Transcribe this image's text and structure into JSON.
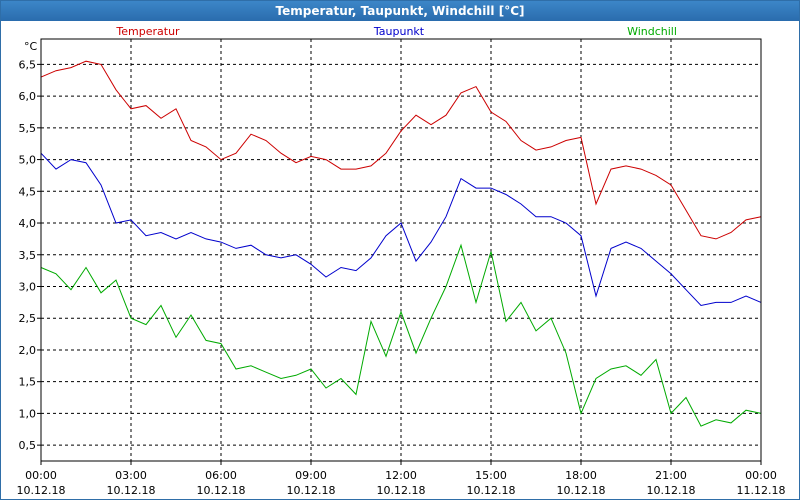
{
  "window": {
    "title": "Temperatur, Taupunkt, Windchill [°C]"
  },
  "chart_data": {
    "type": "line",
    "title": "Temperatur, Taupunkt, Windchill [°C]",
    "ylabel": "°C",
    "xlabel": "",
    "ylim": [
      0.25,
      6.9
    ],
    "xlim_hours": [
      0,
      24
    ],
    "grid": true,
    "yticks": [
      "0,5",
      "1,0",
      "1,5",
      "2,0",
      "2,5",
      "3,0",
      "3,5",
      "4,0",
      "4,5",
      "5,0",
      "5,5",
      "6,0",
      "6,5"
    ],
    "ytick_values": [
      0.5,
      1.0,
      1.5,
      2.0,
      2.5,
      3.0,
      3.5,
      4.0,
      4.5,
      5.0,
      5.5,
      6.0,
      6.5
    ],
    "xticks": [
      {
        "h": 0,
        "time": "00:00",
        "date": "10.12.18"
      },
      {
        "h": 3,
        "time": "03:00",
        "date": "10.12.18"
      },
      {
        "h": 6,
        "time": "06:00",
        "date": "10.12.18"
      },
      {
        "h": 9,
        "time": "09:00",
        "date": "10.12.18"
      },
      {
        "h": 12,
        "time": "12:00",
        "date": "10.12.18"
      },
      {
        "h": 15,
        "time": "15:00",
        "date": "10.12.18"
      },
      {
        "h": 18,
        "time": "18:00",
        "date": "10.12.18"
      },
      {
        "h": 21,
        "time": "21:00",
        "date": "10.12.18"
      },
      {
        "h": 24,
        "time": "00:00",
        "date": "11.12.18"
      }
    ],
    "legend_position": "top",
    "series": [
      {
        "name": "Temperatur",
        "color": "#cc0000",
        "x": [
          0,
          0.5,
          1,
          1.5,
          2,
          2.5,
          3,
          3.5,
          4,
          4.5,
          5,
          5.5,
          6,
          6.5,
          7,
          7.5,
          8,
          8.5,
          9,
          9.5,
          10,
          10.5,
          11,
          11.5,
          12,
          12.5,
          13,
          13.5,
          14,
          14.5,
          15,
          15.5,
          16,
          16.5,
          17,
          17.5,
          18,
          18.5,
          19,
          19.5,
          20,
          20.5,
          21,
          21.5,
          22,
          22.5,
          23,
          23.5,
          24
        ],
        "values": [
          6.3,
          6.4,
          6.45,
          6.55,
          6.5,
          6.1,
          5.8,
          5.85,
          5.65,
          5.8,
          5.3,
          5.2,
          5.0,
          5.1,
          5.4,
          5.3,
          5.1,
          4.95,
          5.05,
          5.0,
          4.85,
          4.85,
          4.9,
          5.1,
          5.45,
          5.7,
          5.55,
          5.7,
          6.05,
          6.15,
          5.75,
          5.6,
          5.3,
          5.15,
          5.2,
          5.3,
          5.35,
          4.3,
          4.85,
          4.9,
          4.85,
          4.75,
          4.6,
          4.2,
          3.8,
          3.75,
          3.85,
          4.05,
          4.1
        ]
      },
      {
        "name": "Taupunkt",
        "color": "#0000cc",
        "x": [
          0,
          0.5,
          1,
          1.5,
          2,
          2.5,
          3,
          3.5,
          4,
          4.5,
          5,
          5.5,
          6,
          6.5,
          7,
          7.5,
          8,
          8.5,
          9,
          9.5,
          10,
          10.5,
          11,
          11.5,
          12,
          12.5,
          13,
          13.5,
          14,
          14.5,
          15,
          15.5,
          16,
          16.5,
          17,
          17.5,
          18,
          18.5,
          19,
          19.5,
          20,
          20.5,
          21,
          21.5,
          22,
          22.5,
          23,
          23.5,
          24
        ],
        "values": [
          5.1,
          4.85,
          5.0,
          4.95,
          4.6,
          4.0,
          4.05,
          3.8,
          3.85,
          3.75,
          3.85,
          3.75,
          3.7,
          3.6,
          3.65,
          3.5,
          3.45,
          3.5,
          3.35,
          3.15,
          3.3,
          3.25,
          3.45,
          3.8,
          4.0,
          3.4,
          3.7,
          4.1,
          4.7,
          4.55,
          4.55,
          4.45,
          4.3,
          4.1,
          4.1,
          4.0,
          3.8,
          2.85,
          3.6,
          3.7,
          3.6,
          3.4,
          3.2,
          2.95,
          2.7,
          2.75,
          2.75,
          2.85,
          2.75
        ]
      },
      {
        "name": "Windchill",
        "color": "#00aa00",
        "x": [
          0,
          0.5,
          1,
          1.5,
          2,
          2.5,
          3,
          3.5,
          4,
          4.5,
          5,
          5.5,
          6,
          6.5,
          7,
          7.5,
          8,
          8.5,
          9,
          9.5,
          10,
          10.5,
          11,
          11.5,
          12,
          12.5,
          13,
          13.5,
          14,
          14.5,
          15,
          15.5,
          16,
          16.5,
          17,
          17.5,
          18,
          18.5,
          19,
          19.5,
          20,
          20.5,
          21,
          21.5,
          22,
          22.5,
          23,
          23.5,
          24
        ],
        "values": [
          3.3,
          3.2,
          2.95,
          3.3,
          2.9,
          3.1,
          2.5,
          2.4,
          2.7,
          2.2,
          2.55,
          2.15,
          2.1,
          1.7,
          1.75,
          1.65,
          1.55,
          1.6,
          1.7,
          1.4,
          1.55,
          1.3,
          2.45,
          1.9,
          2.6,
          1.95,
          2.5,
          3.0,
          3.65,
          2.75,
          3.55,
          2.45,
          2.75,
          2.3,
          2.5,
          1.95,
          1.0,
          1.55,
          1.7,
          1.75,
          1.6,
          1.85,
          1.0,
          1.25,
          0.8,
          0.9,
          0.85,
          1.05,
          1.0
        ]
      }
    ]
  }
}
